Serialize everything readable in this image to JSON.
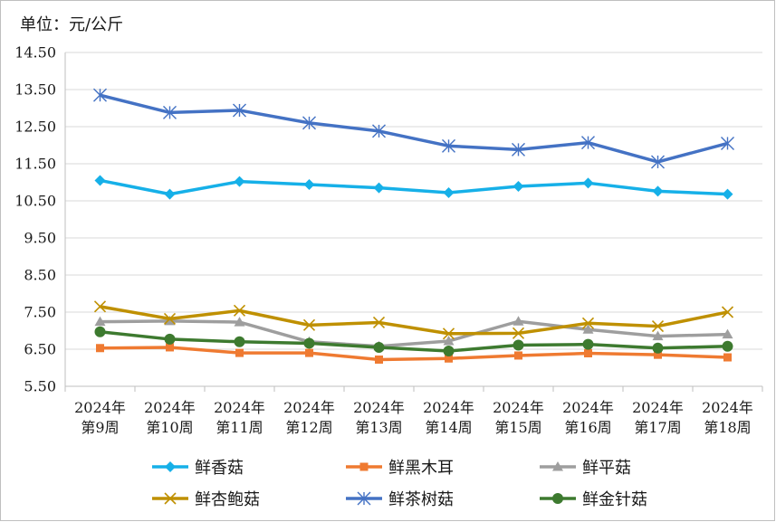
{
  "chart_data": {
    "type": "line",
    "unit_label": "单位：元/公斤",
    "categories": [
      [
        "2024年",
        "第9周"
      ],
      [
        "2024年",
        "第10周"
      ],
      [
        "2024年",
        "第11周"
      ],
      [
        "2024年",
        "第12周"
      ],
      [
        "2024年",
        "第13周"
      ],
      [
        "2024年",
        "第14周"
      ],
      [
        "2024年",
        "第15周"
      ],
      [
        "2024年",
        "第16周"
      ],
      [
        "2024年",
        "第17周"
      ],
      [
        "2024年",
        "第18周"
      ]
    ],
    "y_ticks": [
      "14.50",
      "13.50",
      "12.50",
      "11.50",
      "10.50",
      "9.50",
      "8.50",
      "7.50",
      "6.50",
      "5.50"
    ],
    "ylim": [
      5.5,
      14.5
    ],
    "grid": true,
    "legend_position": "bottom",
    "series": [
      {
        "name": "鲜香菇",
        "color": "#16b0e8",
        "marker": "diamond",
        "values": [
          11.05,
          10.68,
          11.02,
          10.94,
          10.85,
          10.72,
          10.89,
          10.98,
          10.76,
          10.68
        ]
      },
      {
        "name": "鲜黑木耳",
        "color": "#ef7a31",
        "marker": "square",
        "values": [
          6.53,
          6.55,
          6.4,
          6.4,
          6.22,
          6.25,
          6.33,
          6.39,
          6.35,
          6.28
        ]
      },
      {
        "name": "鲜平菇",
        "color": "#9e9e9e",
        "marker": "triangle",
        "values": [
          7.24,
          7.26,
          7.23,
          6.7,
          6.58,
          6.72,
          7.25,
          7.03,
          6.85,
          6.9
        ]
      },
      {
        "name": "鲜杏鲍菇",
        "color": "#bf9000",
        "marker": "x",
        "values": [
          7.65,
          7.32,
          7.54,
          7.15,
          7.22,
          6.92,
          6.93,
          7.2,
          7.12,
          7.5
        ]
      },
      {
        "name": "鲜茶树菇",
        "color": "#4472c4",
        "marker": "asterisk",
        "values": [
          13.35,
          12.88,
          12.94,
          12.6,
          12.38,
          11.98,
          11.88,
          12.07,
          11.55,
          12.05
        ]
      },
      {
        "name": "鲜金针菇",
        "color": "#3d7a2f",
        "marker": "circle",
        "values": [
          6.97,
          6.77,
          6.7,
          6.66,
          6.55,
          6.45,
          6.61,
          6.63,
          6.53,
          6.58
        ]
      }
    ]
  }
}
